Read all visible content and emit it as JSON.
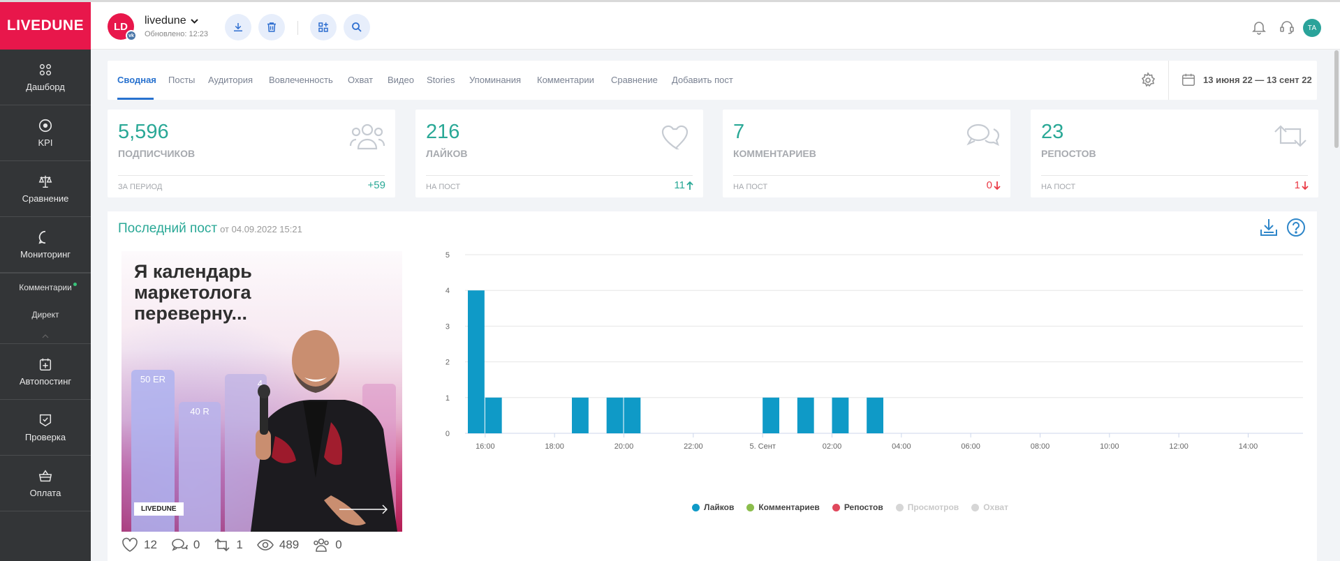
{
  "brand": {
    "logo": "LIVEDUNE",
    "accent": "#e8174b"
  },
  "sidebar": {
    "items": [
      {
        "label": "Дашборд",
        "icon": "dashboard-icon"
      },
      {
        "label": "KPI",
        "icon": "target-icon"
      },
      {
        "label": "Сравнение",
        "icon": "scales-icon"
      },
      {
        "label": "Мониторинг",
        "icon": "chat-bubble-icon"
      }
    ],
    "sub_items": [
      "Комментарии",
      "Директ"
    ],
    "items_bottom": [
      {
        "label": "Автопостинг",
        "icon": "calendar-plus-icon"
      },
      {
        "label": "Проверка",
        "icon": "check-shield-icon"
      },
      {
        "label": "Оплата",
        "icon": "basket-icon"
      }
    ]
  },
  "header": {
    "avatar_initials": "LD",
    "badge": "vk",
    "account_name": "livedune",
    "updated": "Обновлено: 12:23",
    "user_initials": "ТА"
  },
  "tabs": [
    "Сводная",
    "Посты",
    "Аудитория",
    "Вовлеченность",
    "Охват",
    "Видео",
    "Stories",
    "Упоминания",
    "Комментарии",
    "Сравнение",
    "Добавить пост"
  ],
  "active_tab": "Сводная",
  "date_range": "13 июня 22 — 13 сент 22",
  "stats": [
    {
      "value": "5,596",
      "label": "ПОДПИСЧИКОВ",
      "foot": "ЗА ПЕРИОД",
      "foot_value": "+59",
      "trend": "none",
      "icon": "users-icon",
      "color": "#29a896"
    },
    {
      "value": "216",
      "label": "ЛАЙКОВ",
      "foot": "НА ПОСТ",
      "foot_value": "11",
      "trend": "up",
      "icon": "heart-icon",
      "color": "#29a896"
    },
    {
      "value": "7",
      "label": "КОММЕНТАРИЕВ",
      "foot": "НА ПОСТ",
      "foot_value": "0",
      "trend": "down",
      "icon": "comments-icon",
      "color": "#ea3a46"
    },
    {
      "value": "23",
      "label": "РЕПОСТОВ",
      "foot": "НА ПОСТ",
      "foot_value": "1",
      "trend": "down",
      "icon": "repost-icon",
      "color": "#ea3a46"
    }
  ],
  "last_post": {
    "title": "Последний пост",
    "date": "от 04.09.2022 15:21",
    "image": {
      "headline": "Я календарь маркетолога переверну...",
      "brand_tag": "LIVEDUNE",
      "bar_labels": [
        "50 ER",
        "40 R",
        "4"
      ]
    },
    "metrics": [
      {
        "icon": "heart-icon",
        "value": "12"
      },
      {
        "icon": "comment-icon",
        "value": "0"
      },
      {
        "icon": "repost-icon",
        "value": "1"
      },
      {
        "icon": "eye-icon",
        "value": "489"
      },
      {
        "icon": "users-icon",
        "value": "0"
      }
    ]
  },
  "chart_data": {
    "type": "bar",
    "title": "",
    "xlabel": "",
    "ylabel": "",
    "ylim": [
      0,
      5
    ],
    "yticks": [
      0,
      1,
      2,
      3,
      4,
      5
    ],
    "x_ticks": [
      "16:00",
      "18:00",
      "20:00",
      "22:00",
      "5. Сент",
      "02:00",
      "04:00",
      "06:00",
      "08:00",
      "10:00",
      "12:00",
      "14:00"
    ],
    "x_tick_slots": [
      1,
      5,
      9,
      13,
      17,
      21,
      25,
      29,
      33,
      37,
      41,
      45
    ],
    "slot_count": 48,
    "series": [
      {
        "name": "Лайков",
        "color": "#0f9ac7",
        "points": [
          {
            "slot": 0,
            "value": 4
          },
          {
            "slot": 1,
            "value": 1
          },
          {
            "slot": 6,
            "value": 1
          },
          {
            "slot": 8,
            "value": 1
          },
          {
            "slot": 9,
            "value": 1
          },
          {
            "slot": 17,
            "value": 1
          },
          {
            "slot": 19,
            "value": 1
          },
          {
            "slot": 21,
            "value": 1
          },
          {
            "slot": 23,
            "value": 1
          }
        ]
      }
    ],
    "legend": [
      {
        "name": "Лайков",
        "color": "#0f9ac7",
        "active": true
      },
      {
        "name": "Комментариев",
        "color": "#8bbd4c",
        "active": true
      },
      {
        "name": "Репостов",
        "color": "#e0485c",
        "active": true
      },
      {
        "name": "Просмотров",
        "color": "#d6d6d6",
        "active": false
      },
      {
        "name": "Охват",
        "color": "#d6d6d6",
        "active": false
      }
    ],
    "grid": true,
    "legend_position": "bottom-center"
  }
}
